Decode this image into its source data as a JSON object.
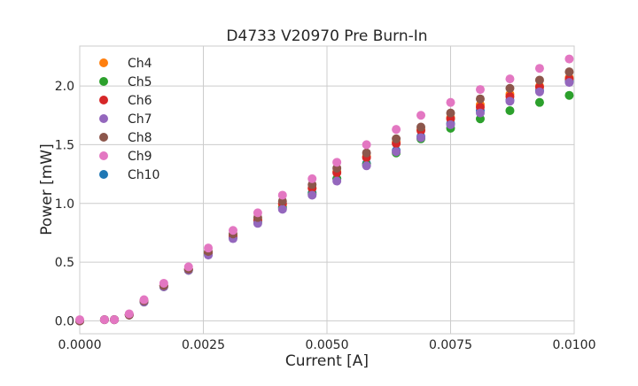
{
  "chart_data": {
    "type": "scatter",
    "title": "D4733 V20970 Pre Burn-In",
    "xlabel": "Current [A]",
    "ylabel": "Power [mW]",
    "xlim": [
      0,
      0.01
    ],
    "ylim": [
      -0.11,
      2.34
    ],
    "grid": true,
    "legend_position": "top-left",
    "xticks": [
      "0.0000",
      "0.0025",
      "0.0050",
      "0.0075",
      "0.0100"
    ],
    "xtick_values": [
      0,
      0.0025,
      0.005,
      0.0075,
      0.01
    ],
    "yticks": [
      "0.0",
      "0.5",
      "1.0",
      "1.5",
      "2.0"
    ],
    "ytick_values": [
      0,
      0.5,
      1.0,
      1.5,
      2.0
    ],
    "x": [
      0,
      0.0005,
      0.0007,
      0.001,
      0.0013,
      0.0017,
      0.0022,
      0.0026,
      0.0031,
      0.0036,
      0.0041,
      0.0047,
      0.0052,
      0.0058,
      0.0064,
      0.0069,
      0.0075,
      0.0081,
      0.0087,
      0.0093,
      0.0099
    ],
    "series": [
      {
        "name": "Ch4",
        "color": "#ff7f0e",
        "values": [
          0,
          0.01,
          0.01,
          0.05,
          0.17,
          0.3,
          0.44,
          0.58,
          0.72,
          0.86,
          0.99,
          1.13,
          1.27,
          1.4,
          1.52,
          1.63,
          1.73,
          1.84,
          1.93,
          2.0,
          2.07
        ]
      },
      {
        "name": "Ch5",
        "color": "#2ca02c",
        "values": [
          0,
          0.01,
          0.01,
          0.05,
          0.16,
          0.29,
          0.43,
          0.57,
          0.71,
          0.84,
          0.96,
          1.08,
          1.21,
          1.33,
          1.43,
          1.55,
          1.64,
          1.72,
          1.79,
          1.86,
          1.92
        ]
      },
      {
        "name": "Ch6",
        "color": "#d62728",
        "values": [
          0,
          0.01,
          0.01,
          0.05,
          0.17,
          0.3,
          0.44,
          0.58,
          0.72,
          0.86,
          1.0,
          1.13,
          1.26,
          1.39,
          1.51,
          1.62,
          1.72,
          1.82,
          1.91,
          1.99,
          2.06
        ]
      },
      {
        "name": "Ch7",
        "color": "#9467bd",
        "values": [
          0,
          0.01,
          0.01,
          0.05,
          0.16,
          0.29,
          0.43,
          0.56,
          0.7,
          0.83,
          0.95,
          1.07,
          1.19,
          1.32,
          1.44,
          1.56,
          1.67,
          1.77,
          1.87,
          1.95,
          2.03
        ]
      },
      {
        "name": "Ch8",
        "color": "#8c564b",
        "values": [
          0,
          0.01,
          0.01,
          0.05,
          0.17,
          0.3,
          0.44,
          0.59,
          0.74,
          0.88,
          1.02,
          1.16,
          1.3,
          1.43,
          1.55,
          1.65,
          1.77,
          1.89,
          1.98,
          2.05,
          2.12
        ]
      },
      {
        "name": "Ch9",
        "color": "#e377c2",
        "values": [
          0.01,
          0.01,
          0.01,
          0.06,
          0.18,
          0.32,
          0.46,
          0.62,
          0.77,
          0.92,
          1.07,
          1.21,
          1.35,
          1.5,
          1.63,
          1.75,
          1.86,
          1.97,
          2.06,
          2.15,
          2.23
        ]
      },
      {
        "name": "Ch10",
        "color": "#1f77b4",
        "values": [
          0,
          0.01,
          0.01,
          0.05,
          0.17,
          0.3,
          0.44,
          0.57,
          0.71,
          0.85,
          0.97,
          1.09,
          1.21,
          1.34,
          1.45,
          1.57,
          1.68,
          1.79,
          1.88,
          1.96,
          2.04
        ]
      }
    ]
  }
}
